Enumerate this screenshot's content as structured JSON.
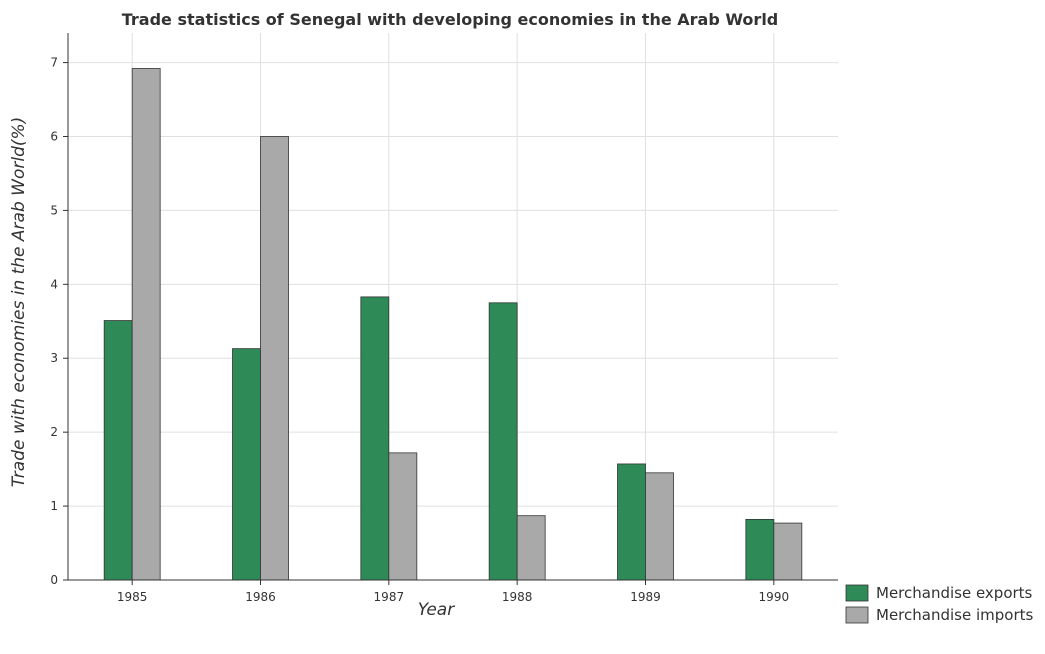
{
  "chart_data": {
    "type": "bar",
    "title": "Trade statistics of Senegal with developing economies in the Arab World",
    "xlabel": "Year",
    "ylabel": "Trade with economies in the Arab World(%)",
    "categories": [
      "1985",
      "1986",
      "1987",
      "1988",
      "1989",
      "1990"
    ],
    "series": [
      {
        "name": "Merchandise exports",
        "values": [
          3.51,
          3.13,
          3.83,
          3.75,
          1.57,
          0.82
        ],
        "color": "#2e8b57"
      },
      {
        "name": "Merchandise imports",
        "values": [
          6.92,
          6.0,
          1.72,
          0.87,
          1.45,
          0.77
        ],
        "color": "#a9a9a9"
      }
    ],
    "ylim": [
      0,
      7.4
    ],
    "yticks": [
      0,
      1,
      2,
      3,
      4,
      5,
      6,
      7
    ],
    "grid": true,
    "legend_position": "bottom-right"
  }
}
